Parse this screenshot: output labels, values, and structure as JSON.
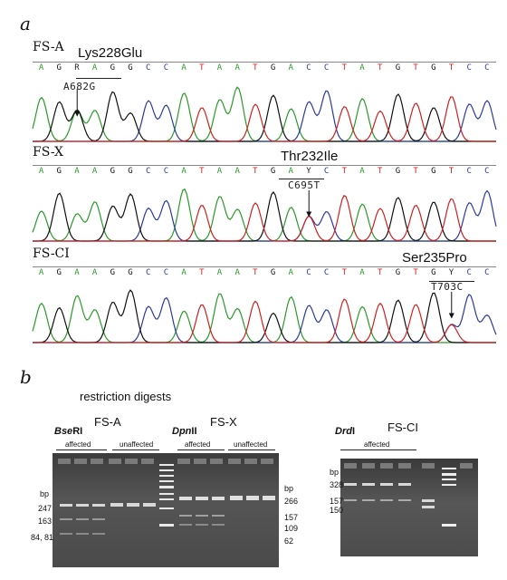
{
  "panel_a": {
    "letter": "a",
    "rows": [
      {
        "label": "FS-A",
        "mutation": "Lys228Glu",
        "nt_change": "A682G",
        "sequence": [
          "A",
          "G",
          "R",
          "A",
          "G",
          "G",
          "C",
          "C",
          "A",
          "T",
          "A",
          "A",
          "T",
          "G",
          "A",
          "C",
          "C",
          "T",
          "A",
          "T",
          "G",
          "T",
          "G",
          "T",
          "C",
          "C"
        ]
      },
      {
        "label": "FS-X",
        "mutation": "Thr232Ile",
        "nt_change": "C695T",
        "sequence": [
          "A",
          "G",
          "A",
          "A",
          "G",
          "G",
          "C",
          "C",
          "A",
          "T",
          "A",
          "A",
          "T",
          "G",
          "A",
          "Y",
          "C",
          "T",
          "A",
          "T",
          "G",
          "T",
          "G",
          "T",
          "C",
          "C"
        ]
      },
      {
        "label": "FS-CI",
        "mutation": "Ser235Pro",
        "nt_change": "T703C",
        "sequence": [
          "A",
          "G",
          "A",
          "A",
          "G",
          "G",
          "C",
          "C",
          "A",
          "T",
          "A",
          "A",
          "T",
          "G",
          "A",
          "C",
          "C",
          "T",
          "A",
          "T",
          "G",
          "T",
          "G",
          "Y",
          "C",
          "C"
        ]
      }
    ]
  },
  "panel_b": {
    "letter": "b",
    "title": "restriction digests",
    "gels": [
      {
        "name": "FS-A",
        "enzyme_prefix": "Bse",
        "enzyme_suffix": "RI",
        "groups": [
          "affected",
          "unaffected"
        ],
        "bp_heading": "bp",
        "sizes_left": [
          "247",
          "163",
          "84, 81"
        ]
      },
      {
        "name": "FS-X",
        "enzyme_prefix": "Dpn",
        "enzyme_suffix": "II",
        "groups": [
          "affected",
          "unaffected"
        ],
        "bp_heading": "bp",
        "sizes_right": [
          "266",
          "157",
          "109",
          "62"
        ]
      },
      {
        "name": "FS-CI",
        "enzyme_prefix": "Drd",
        "enzyme_suffix": "I",
        "groups": [
          "affected"
        ],
        "bp_heading": "bp",
        "sizes_left": [
          "328",
          "157",
          "150"
        ]
      }
    ]
  },
  "colors": {
    "A": "#2a9a2a",
    "C": "#2a3aa0",
    "G": "#111111",
    "T": "#d02020",
    "ambiguous": "#222222",
    "gel_bg": "#4a4a4a"
  }
}
